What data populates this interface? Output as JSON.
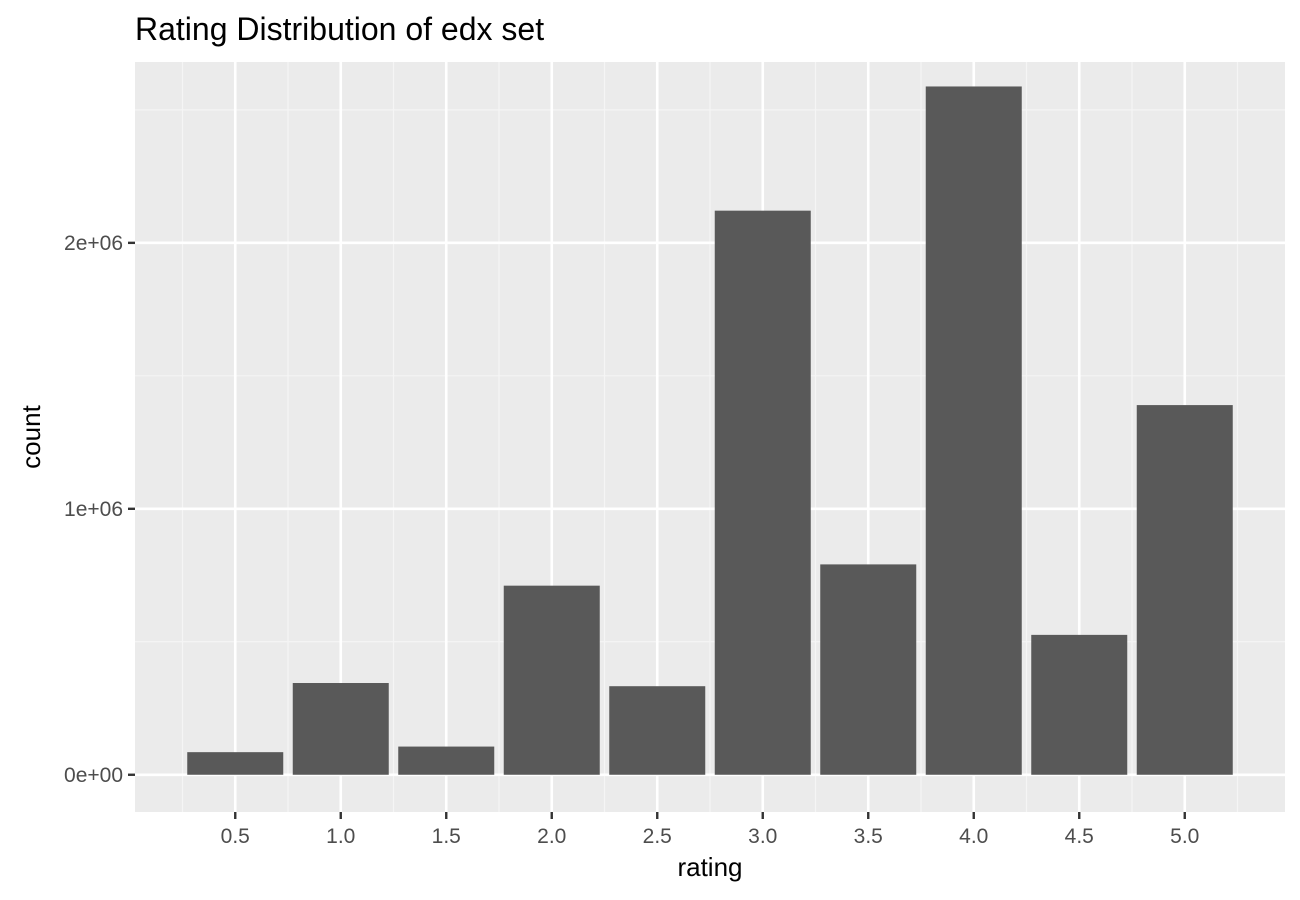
{
  "chart_data": {
    "type": "bar",
    "title": "Rating Distribution of edx set",
    "xlabel": "rating",
    "ylabel": "count",
    "categories": [
      "0.5",
      "1.0",
      "1.5",
      "2.0",
      "2.5",
      "3.0",
      "3.5",
      "4.0",
      "4.5",
      "5.0"
    ],
    "values": [
      85000,
      345000,
      106000,
      711000,
      333000,
      2121000,
      791000,
      2588000,
      526000,
      1390000
    ],
    "ylim": [
      -140000,
      2680000
    ],
    "yticks": [
      0,
      1000000,
      2000000
    ],
    "ytick_labels": [
      "0e+00",
      "1e+06",
      "2e+06"
    ],
    "grid": true,
    "colors": {
      "bar": "#595959",
      "panel": "#ebebeb",
      "grid_major": "#ffffff",
      "grid_minor": "#f5f5f5",
      "tick": "#333333"
    }
  }
}
